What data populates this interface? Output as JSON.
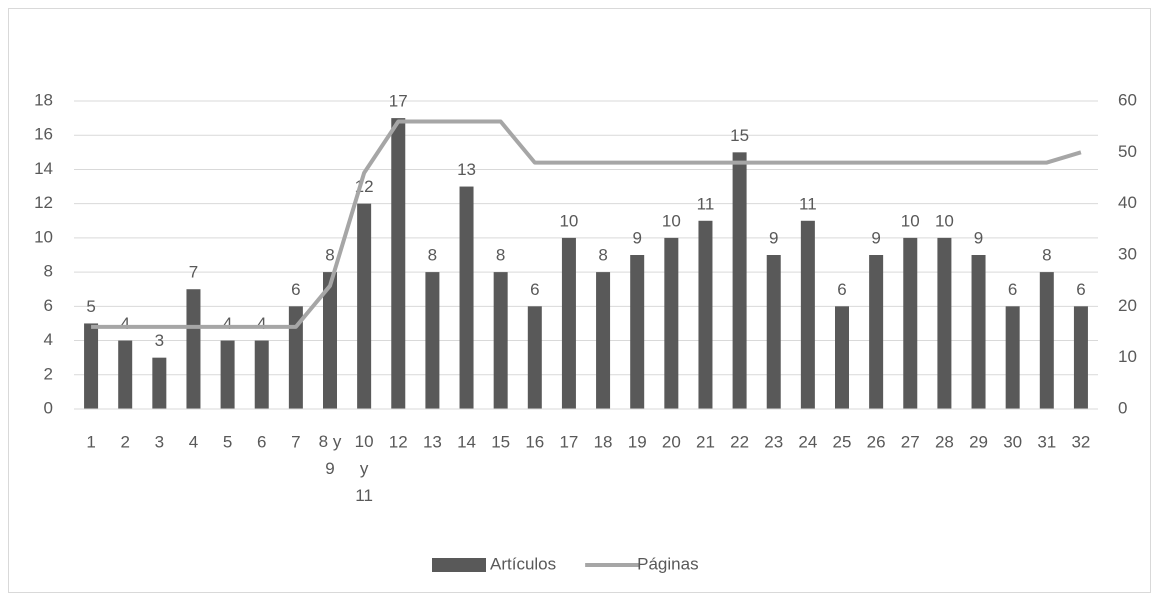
{
  "chart_data": {
    "type": "bar_line",
    "categories": [
      "1",
      "2",
      "3",
      "4",
      "5",
      "6",
      "7",
      "8 y 9",
      "10 y 11",
      "12",
      "13",
      "14",
      "15",
      "16",
      "17",
      "18",
      "19",
      "20",
      "21",
      "22",
      "23",
      "24",
      "25",
      "26",
      "27",
      "28",
      "29",
      "30",
      "31",
      "32"
    ],
    "series": [
      {
        "name": "Artículos",
        "color": "#595959",
        "type": "bar",
        "values": [
          5,
          4,
          3,
          7,
          4,
          4,
          6,
          8,
          12,
          17,
          8,
          13,
          8,
          6,
          10,
          8,
          9,
          10,
          11,
          15,
          9,
          11,
          6,
          9,
          10,
          10,
          9,
          6,
          8,
          6
        ]
      },
      {
        "name": "Páginas",
        "color": "#a6a6a6",
        "type": "line",
        "axis": "y2",
        "values": [
          16,
          16,
          16,
          16,
          16,
          16,
          16,
          24,
          46,
          56,
          56,
          56,
          56,
          48,
          48,
          48,
          48,
          48,
          48,
          48,
          48,
          48,
          48,
          48,
          48,
          48,
          48,
          48,
          48,
          50
        ]
      }
    ],
    "ylim": [
      0,
      18
    ],
    "yticks": [
      0,
      2,
      4,
      6,
      8,
      10,
      12,
      14,
      16,
      18
    ],
    "y2lim": [
      0,
      60
    ],
    "y2ticks": [
      0,
      10,
      20,
      30,
      40,
      50,
      60
    ],
    "grid": true,
    "legend": "bottom"
  }
}
